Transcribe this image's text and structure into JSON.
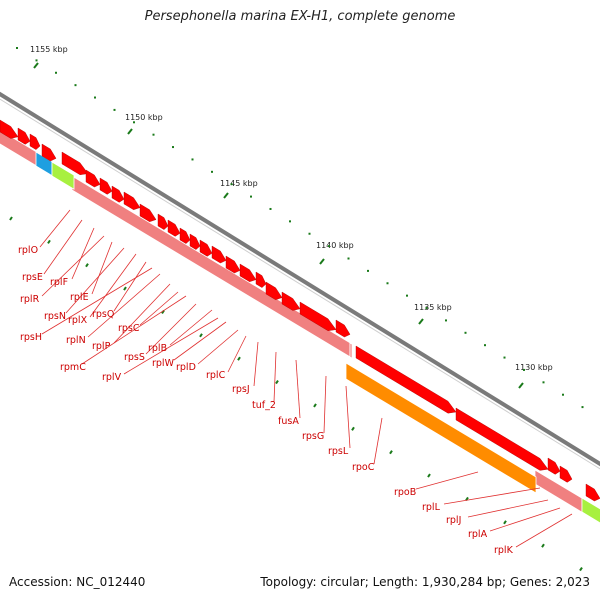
{
  "title": "Persephonella marina EX-H1, complete genome",
  "footer": {
    "accession": "Accession: NC_012440",
    "topology": "Topology: circular; Length: 1,930,284 bp; Genes: 2,023"
  },
  "colors": {
    "backbone": "#7a7a7a",
    "gene_arrow": "#ff0000",
    "cds_band": "#f08080",
    "rrna_band": "#ff8c00",
    "cyan_block": "#1e9fe0",
    "green_block": "#a8f040",
    "tick": "#1a7a1a",
    "label": "#cc0000",
    "leader": "#e03030"
  },
  "kbp_ticks": [
    "1155 kbp",
    "1150 kbp",
    "1145 kbp",
    "1140 kbp",
    "1135 kbp",
    "1130 kbp"
  ],
  "gene_labels": [
    "rplO",
    "rpsE",
    "rplF",
    "rplR",
    "rplE",
    "rpsN",
    "rplX",
    "rpsQ",
    "rpsH",
    "rplN",
    "rplP",
    "rpsC",
    "rpmC",
    "rpsS",
    "rplB",
    "rplV",
    "rplW",
    "rplD",
    "rplC",
    "rpsJ",
    "tuf_2",
    "fusA",
    "rpsG",
    "rpsL",
    "rpoC",
    "rpoB",
    "rplL",
    "rplJ",
    "rplA",
    "rplK"
  ]
}
